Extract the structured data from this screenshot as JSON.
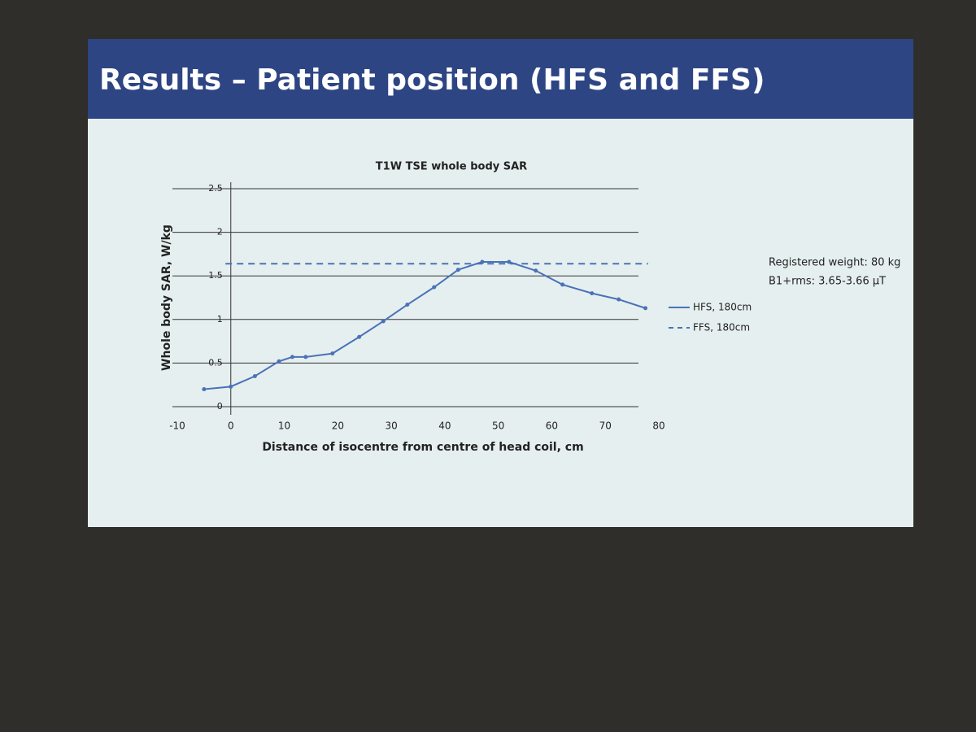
{
  "slide_title": "Results – Patient position  (HFS and FFS)",
  "chart_data": {
    "type": "line",
    "title": "T1W TSE whole body SAR",
    "x_label": "Distance of isocentre from centre of head coil, cm",
    "y_label": "Whole body SAR, W/kg",
    "annotations": [
      "Registered weight: 80 kg",
      "B1+rms: 3.65-3.66 µT"
    ],
    "xlim": [
      -10,
      80
    ],
    "xticks": [
      -10,
      0,
      10,
      20,
      30,
      40,
      50,
      60,
      70,
      80
    ],
    "ylim": [
      0,
      2.5
    ],
    "yticks": [
      0,
      0.5,
      1,
      1.5,
      2,
      2.5
    ],
    "grid": true,
    "legend": "right",
    "series": [
      {
        "name": "HFS, 180cm",
        "color": "#4a72b8",
        "style": "solid",
        "x": [
          -5,
          0,
          4.5,
          9,
          11.5,
          14,
          19,
          24,
          28.5,
          33,
          38,
          42.5,
          47,
          52,
          57,
          62,
          67.5,
          72.5,
          77.5
        ],
        "values": [
          0.2,
          0.23,
          0.35,
          0.52,
          0.57,
          0.57,
          0.61,
          0.8,
          0.98,
          1.17,
          1.37,
          1.57,
          1.66,
          1.66,
          1.56,
          1.4,
          1.3,
          1.23,
          1.13
        ]
      },
      {
        "name": "FFS, 180cm",
        "color": "#4a72b8",
        "style": "dashed",
        "x": [
          -1,
          78
        ],
        "values": [
          1.64,
          1.64
        ]
      }
    ]
  }
}
